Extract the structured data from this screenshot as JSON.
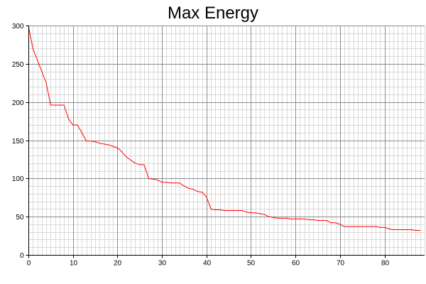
{
  "chart_data": {
    "type": "line",
    "title": "Max Energy",
    "xlabel": "",
    "ylabel": "",
    "xlim": [
      0,
      89
    ],
    "ylim": [
      0,
      300
    ],
    "x_ticks": [
      0,
      10,
      20,
      30,
      40,
      50,
      60,
      70,
      80
    ],
    "y_ticks": [
      0,
      50,
      100,
      150,
      200,
      250,
      300
    ],
    "x_minor_step": 1,
    "y_minor_step": 10,
    "grid": true,
    "series": [
      {
        "color": "#ff0000",
        "x": [
          0,
          1,
          2,
          3,
          4,
          5,
          6,
          7,
          8,
          9,
          10,
          11,
          12,
          13,
          14,
          15,
          16,
          17,
          18,
          19,
          20,
          21,
          22,
          23,
          24,
          25,
          26,
          27,
          28,
          29,
          30,
          31,
          32,
          33,
          34,
          35,
          36,
          37,
          38,
          39,
          40,
          41,
          42,
          43,
          44,
          45,
          46,
          47,
          48,
          49,
          50,
          51,
          52,
          53,
          54,
          55,
          56,
          57,
          58,
          59,
          60,
          61,
          62,
          63,
          64,
          65,
          66,
          67,
          68,
          69,
          70,
          71,
          72,
          73,
          74,
          75,
          76,
          77,
          78,
          79,
          80,
          81,
          82,
          83,
          84,
          85,
          86,
          87,
          88
        ],
        "y": [
          300,
          270,
          255,
          240,
          225,
          196,
          196,
          196,
          196,
          178,
          170,
          170,
          160,
          149,
          149,
          148,
          146,
          145,
          144,
          142,
          140,
          135,
          128,
          124,
          120,
          118,
          118,
          100,
          99,
          98,
          95,
          95,
          94,
          94,
          94,
          90,
          87,
          86,
          83,
          82,
          76,
          60,
          59,
          59,
          58,
          58,
          58,
          58,
          58,
          56,
          55,
          55,
          54,
          53,
          50,
          49,
          48,
          48,
          48,
          47,
          47,
          47,
          47,
          46,
          46,
          45,
          45,
          45,
          42,
          42,
          40,
          37,
          37,
          37,
          37,
          37,
          37,
          37,
          37,
          36,
          36,
          34,
          33,
          33,
          33,
          33,
          33,
          32,
          32
        ]
      }
    ]
  }
}
